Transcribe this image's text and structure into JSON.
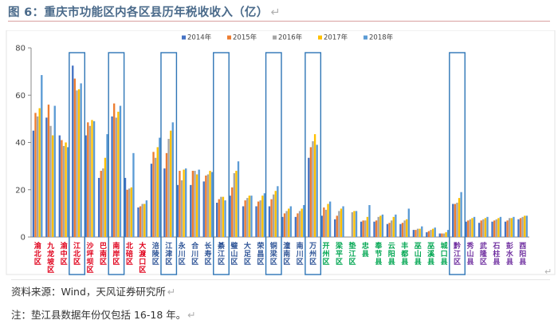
{
  "title": "图 6：重庆市功能区内各区县历年税收收入（亿）",
  "source_text": "资料来源：Wind，天风证券研究所",
  "note_text": "注：垫江县数据年份仅包括 16-18 年。",
  "colors": {
    "series": [
      "#4472C4",
      "#ED7D31",
      "#A5A5A5",
      "#FFC000",
      "#5B9BD5"
    ],
    "highlight_box": "#2E75B6",
    "region_red": "#E0001B",
    "region_blue": "#2F5597",
    "region_green": "#00A651",
    "region_purple": "#7030A0",
    "axis": "#888888",
    "grid": "#d9d9d9",
    "title": "#4a6a8a"
  },
  "chart_data": {
    "type": "bar",
    "title": "",
    "xlabel": "",
    "ylabel": "",
    "ylim": [
      0,
      80
    ],
    "yticks": [
      0,
      20,
      40,
      60,
      80
    ],
    "grid": false,
    "legend_position": "top-center",
    "categories": [
      "渝北区",
      "九龙坡区",
      "渝中区",
      "江北区",
      "沙坪坝区",
      "巴南区",
      "南岸区",
      "北碚区",
      "大渡口区",
      "涪陵区",
      "江津区",
      "永川区",
      "合川区",
      "长寿区",
      "綦江区",
      "璧山区",
      "大足区",
      "荣昌区",
      "铜梁区",
      "潼南区",
      "南川区",
      "万州区",
      "开州区",
      "梁平区",
      "垫江区",
      "忠县",
      "奉节县",
      "云阳县",
      "丰都县",
      "巫山县",
      "巫溪县",
      "城口县",
      "黔江区",
      "秀山县",
      "武隆区",
      "石柱县",
      "彭水县",
      "酉阳县"
    ],
    "category_region": [
      "red",
      "red",
      "red",
      "red",
      "red",
      "red",
      "red",
      "red",
      "red",
      "blue",
      "blue",
      "blue",
      "blue",
      "blue",
      "blue",
      "blue",
      "blue",
      "blue",
      "blue",
      "blue",
      "blue",
      "blue",
      "green",
      "green",
      "green",
      "green",
      "green",
      "green",
      "green",
      "green",
      "green",
      "green",
      "purple",
      "purple",
      "purple",
      "purple",
      "purple",
      "purple"
    ],
    "highlighted": [
      "江北区",
      "南岸区",
      "江津区",
      "綦江区",
      "铜梁区",
      "万州区",
      "黔江区"
    ],
    "series": [
      {
        "name": "2014年",
        "values": [
          45.0,
          50.5,
          43.0,
          72.5,
          43.0,
          25.0,
          51.0,
          25.0,
          12.5,
          31.0,
          29.0,
          22.0,
          22.0,
          23.5,
          14.5,
          17.5,
          13.0,
          13.0,
          13.0,
          8.5,
          8.5,
          33.5,
          9.0,
          7.5,
          null,
          6.5,
          6.5,
          5.5,
          5.5,
          3.0,
          2.0,
          1.5,
          14.0,
          6.5,
          6.0,
          6.5,
          6.5,
          7.5
        ]
      },
      {
        "name": "2015年",
        "values": [
          52.5,
          56.0,
          41.0,
          67.0,
          48.5,
          28.0,
          56.5,
          20.0,
          13.0,
          36.0,
          35.5,
          28.0,
          28.0,
          26.0,
          16.0,
          21.0,
          15.5,
          15.0,
          16.0,
          10.0,
          10.0,
          38.0,
          12.5,
          9.0,
          null,
          7.0,
          7.0,
          6.0,
          6.0,
          3.0,
          2.5,
          1.5,
          14.0,
          7.0,
          7.0,
          7.0,
          7.0,
          8.0
        ]
      },
      {
        "name": "2016年",
        "values": [
          51.0,
          47.0,
          38.5,
          62.0,
          47.0,
          29.0,
          50.5,
          20.5,
          14.0,
          33.5,
          41.5,
          24.0,
          28.0,
          26.5,
          17.0,
          27.0,
          16.5,
          15.5,
          18.0,
          11.0,
          11.0,
          40.5,
          11.5,
          11.0,
          10.5,
          7.0,
          8.5,
          7.0,
          7.0,
          3.5,
          3.0,
          1.5,
          14.5,
          7.5,
          7.5,
          7.5,
          8.0,
          8.5
        ]
      },
      {
        "name": "2017年",
        "values": [
          54.5,
          43.0,
          40.0,
          62.5,
          49.5,
          33.5,
          53.0,
          21.0,
          14.0,
          38.0,
          45.0,
          28.5,
          26.5,
          28.0,
          17.0,
          28.0,
          17.5,
          17.5,
          19.5,
          12.0,
          12.0,
          43.5,
          14.0,
          12.0,
          11.0,
          8.5,
          9.0,
          8.5,
          7.5,
          3.5,
          3.5,
          2.0,
          16.5,
          8.0,
          8.0,
          8.0,
          8.0,
          9.0
        ]
      },
      {
        "name": "2018年",
        "values": [
          68.5,
          55.5,
          38.0,
          65.0,
          49.0,
          43.5,
          55.5,
          35.5,
          15.5,
          42.0,
          48.5,
          29.0,
          28.5,
          27.5,
          15.5,
          32.0,
          17.5,
          18.5,
          21.5,
          13.0,
          13.5,
          39.0,
          15.0,
          13.0,
          11.0,
          13.5,
          9.5,
          9.5,
          12.0,
          4.5,
          4.0,
          3.0,
          19.0,
          8.5,
          8.5,
          8.5,
          8.5,
          9.0
        ]
      }
    ]
  }
}
